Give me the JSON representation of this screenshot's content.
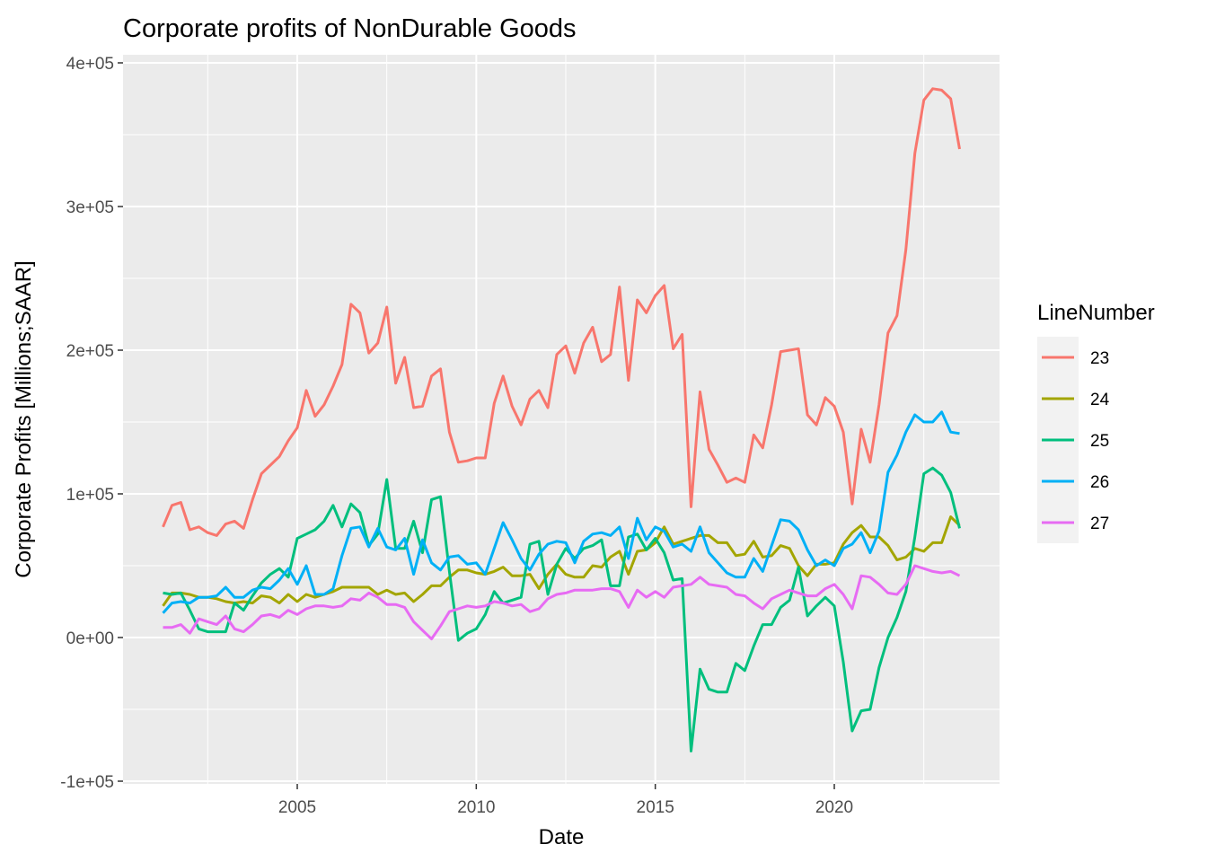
{
  "chart_data": {
    "type": "line",
    "title": "Corporate profits of NonDurable Goods",
    "xlabel": "Date",
    "ylabel": "Corporate Profits [Millions;SAAR]",
    "x_ticks": [
      "2005",
      "2010",
      "2015",
      "2020"
    ],
    "y_ticks": [
      "-1e+05",
      "0e+00",
      "1e+05",
      "2e+05",
      "3e+05",
      "4e+05"
    ],
    "ylim": [
      -100000,
      400000
    ],
    "grid": true,
    "legend": {
      "title": "LineNumber",
      "position": "right"
    },
    "x": [
      "2001Q2",
      "2001Q3",
      "2001Q4",
      "2002Q1",
      "2002Q2",
      "2002Q3",
      "2002Q4",
      "2003Q1",
      "2003Q2",
      "2003Q3",
      "2003Q4",
      "2004Q1",
      "2004Q2",
      "2004Q3",
      "2004Q4",
      "2005Q1",
      "2005Q2",
      "2005Q3",
      "2005Q4",
      "2006Q1",
      "2006Q2",
      "2006Q3",
      "2006Q4",
      "2007Q1",
      "2007Q2",
      "2007Q3",
      "2007Q4",
      "2008Q1",
      "2008Q2",
      "2008Q3",
      "2008Q4",
      "2009Q1",
      "2009Q2",
      "2009Q3",
      "2009Q4",
      "2010Q1",
      "2010Q2",
      "2010Q3",
      "2010Q4",
      "2011Q1",
      "2011Q2",
      "2011Q3",
      "2011Q4",
      "2012Q1",
      "2012Q2",
      "2012Q3",
      "2012Q4",
      "2013Q1",
      "2013Q2",
      "2013Q3",
      "2013Q4",
      "2014Q1",
      "2014Q2",
      "2014Q3",
      "2014Q4",
      "2015Q1",
      "2015Q2",
      "2015Q3",
      "2015Q4",
      "2016Q1",
      "2016Q2",
      "2016Q3",
      "2016Q4",
      "2017Q1",
      "2017Q2",
      "2017Q3",
      "2017Q4",
      "2018Q1",
      "2018Q2",
      "2018Q3",
      "2018Q4",
      "2019Q1",
      "2019Q2",
      "2019Q3",
      "2019Q4",
      "2020Q1",
      "2020Q2",
      "2020Q3",
      "2020Q4",
      "2021Q1",
      "2021Q2",
      "2021Q3",
      "2021Q4",
      "2022Q1",
      "2022Q2",
      "2022Q3",
      "2022Q4",
      "2023Q1",
      "2023Q2",
      "2023Q3"
    ],
    "series": [
      {
        "name": "23",
        "color": "#F8766D",
        "values": [
          77000,
          92000,
          94000,
          75000,
          77000,
          73000,
          71000,
          79000,
          81000,
          76000,
          96000,
          114000,
          120000,
          126000,
          137000,
          146000,
          172000,
          154000,
          162000,
          175000,
          190000,
          232000,
          226000,
          198000,
          205000,
          230000,
          177000,
          195000,
          160000,
          161000,
          182000,
          187000,
          143000,
          122000,
          123000,
          125000,
          125000,
          163000,
          182000,
          161000,
          148000,
          166000,
          172000,
          160000,
          197000,
          203000,
          184000,
          205000,
          216000,
          192000,
          197000,
          244000,
          179000,
          235000,
          226000,
          238000,
          245000,
          201000,
          211000,
          91000,
          171000,
          131000,
          120000,
          108000,
          111000,
          108000,
          141000,
          132000,
          162000,
          199000,
          200000,
          201000,
          155000,
          148000,
          167000,
          161000,
          143000,
          93000,
          145000,
          122000,
          162000,
          212000,
          224000,
          270000,
          337000,
          374000,
          382000,
          381000,
          375000,
          340000
        ]
      },
      {
        "name": "24",
        "color": "#A3A500",
        "values": [
          22000,
          31000,
          31000,
          30000,
          28000,
          28000,
          27000,
          25000,
          24000,
          25000,
          24000,
          29000,
          28000,
          24000,
          30000,
          25000,
          30000,
          28000,
          30000,
          32000,
          35000,
          35000,
          35000,
          35000,
          30000,
          33000,
          30000,
          31000,
          25000,
          30000,
          36000,
          36000,
          42000,
          47000,
          47000,
          45000,
          44000,
          46000,
          49000,
          43000,
          43000,
          44000,
          34000,
          44000,
          51000,
          44000,
          42000,
          42000,
          50000,
          49000,
          56000,
          60000,
          44000,
          60000,
          61000,
          66000,
          77000,
          65000,
          67000,
          69000,
          71000,
          71000,
          66000,
          66000,
          57000,
          58000,
          67000,
          56000,
          57000,
          64000,
          62000,
          50000,
          43000,
          51000,
          51000,
          52000,
          65000,
          73000,
          78000,
          70000,
          70000,
          64000,
          54000,
          56000,
          62000,
          60000,
          66000,
          66000,
          84000,
          78000
        ]
      },
      {
        "name": "25",
        "color": "#00BF7D",
        "values": [
          31000,
          30000,
          31000,
          19000,
          6000,
          4000,
          4000,
          4000,
          24000,
          19000,
          29000,
          38000,
          44000,
          48000,
          42000,
          69000,
          72000,
          75000,
          81000,
          92000,
          77000,
          93000,
          87000,
          64000,
          72000,
          110000,
          62000,
          62000,
          81000,
          59000,
          96000,
          98000,
          46000,
          -2000,
          3000,
          6000,
          16000,
          32000,
          24000,
          26000,
          28000,
          65000,
          67000,
          30000,
          51000,
          62000,
          55000,
          62000,
          64000,
          68000,
          36000,
          36000,
          70000,
          72000,
          61000,
          69000,
          59000,
          40000,
          41000,
          -79000,
          -22000,
          -36000,
          -38000,
          -38000,
          -18000,
          -23000,
          -6000,
          9000,
          9000,
          21000,
          26000,
          49000,
          15000,
          22000,
          28000,
          22000,
          -17000,
          -65000,
          -51000,
          -50000,
          -21000,
          0,
          14000,
          32000,
          70000,
          114000,
          118000,
          113000,
          101000,
          76000
        ]
      },
      {
        "name": "26",
        "color": "#00B0F6",
        "values": [
          17000,
          24000,
          25000,
          24000,
          28000,
          28000,
          29000,
          35000,
          28000,
          28000,
          33000,
          35000,
          34000,
          40000,
          48000,
          37000,
          50000,
          30000,
          30000,
          34000,
          57000,
          76000,
          77000,
          63000,
          76000,
          63000,
          61000,
          69000,
          44000,
          68000,
          52000,
          47000,
          56000,
          57000,
          51000,
          52000,
          44000,
          62000,
          80000,
          68000,
          55000,
          47000,
          58000,
          65000,
          67000,
          66000,
          52000,
          67000,
          72000,
          73000,
          71000,
          77000,
          55000,
          83000,
          68000,
          77000,
          74000,
          63000,
          65000,
          60000,
          77000,
          59000,
          52000,
          45000,
          42000,
          42000,
          55000,
          46000,
          64000,
          82000,
          81000,
          75000,
          61000,
          50000,
          54000,
          50000,
          62000,
          65000,
          73000,
          59000,
          74000,
          115000,
          127000,
          143000,
          155000,
          150000,
          150000,
          157000,
          143000,
          142000
        ]
      },
      {
        "name": "27",
        "color": "#E76BF3",
        "values": [
          7000,
          7000,
          9000,
          3000,
          13000,
          11000,
          9000,
          15000,
          6000,
          4000,
          9000,
          15000,
          16000,
          14000,
          19000,
          16000,
          20000,
          22000,
          22000,
          21000,
          22000,
          27000,
          26000,
          31000,
          28000,
          23000,
          23000,
          21000,
          11000,
          5000,
          -1000,
          8000,
          18000,
          20000,
          22000,
          21000,
          22000,
          25000,
          24000,
          22000,
          23000,
          18000,
          20000,
          27000,
          30000,
          31000,
          33000,
          33000,
          33000,
          34000,
          34000,
          32000,
          21000,
          33000,
          28000,
          32000,
          28000,
          35000,
          36000,
          37000,
          42000,
          37000,
          36000,
          35000,
          30000,
          29000,
          24000,
          20000,
          27000,
          30000,
          33000,
          31000,
          29000,
          29000,
          34000,
          37000,
          30000,
          20000,
          43000,
          42000,
          37000,
          31000,
          30000,
          37000,
          50000,
          48000,
          46000,
          45000,
          46000,
          43000
        ]
      }
    ]
  }
}
